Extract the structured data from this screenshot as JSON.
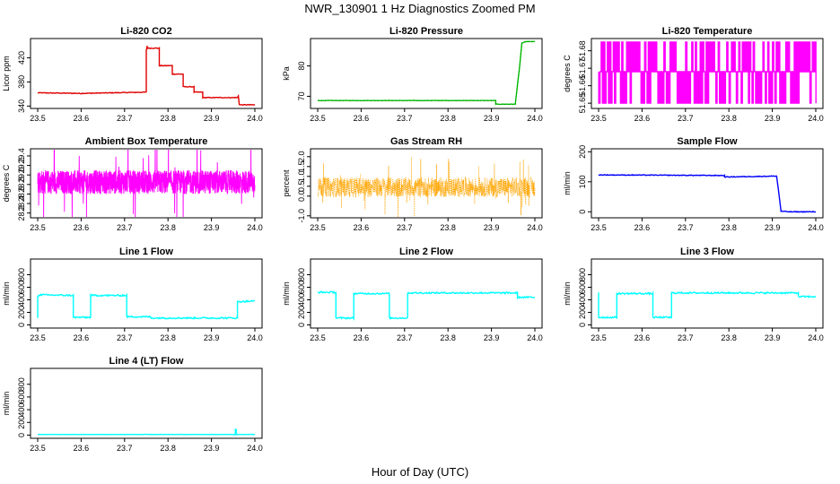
{
  "figure": {
    "title": "NWR_130901  1 Hz Diagnostics Zoomed PM",
    "xlabel": "Hour of Day (UTC)"
  },
  "chart_data": [
    {
      "type": "line",
      "title": "Li-820 CO2",
      "ylabel": "Licor ppm",
      "xlim": [
        23.5,
        24.0
      ],
      "ylim": [
        336,
        452
      ],
      "xticks": [
        "23.5",
        "23.6",
        "23.7",
        "23.8",
        "23.9",
        "24.0"
      ],
      "yticks": [
        {
          "v": 340,
          "label": "340"
        },
        {
          "v": 380,
          "label": "380"
        },
        {
          "v": 420,
          "label": "420"
        }
      ],
      "color": "#e00000",
      "noise": 0.6,
      "dense": false,
      "points": false,
      "x": [
        23.5,
        23.6,
        23.75,
        23.75,
        23.752,
        23.752,
        23.78,
        23.78,
        23.81,
        23.81,
        23.835,
        23.835,
        23.86,
        23.86,
        23.88,
        23.88,
        23.96,
        23.962,
        23.964,
        23.966,
        24.0
      ],
      "y": [
        362,
        361,
        363,
        432,
        440,
        436,
        436,
        407,
        407,
        393,
        393,
        372,
        372,
        363,
        363,
        354,
        354,
        357,
        343,
        342,
        342
      ]
    },
    {
      "type": "line",
      "title": "Li-820 Pressure",
      "ylabel": "kPa",
      "xlim": [
        23.5,
        24.0
      ],
      "ylim": [
        66,
        89
      ],
      "xticks": [
        "23.5",
        "23.6",
        "23.7",
        "23.8",
        "23.9",
        "24.0"
      ],
      "yticks": [
        {
          "v": 70,
          "label": "70"
        },
        {
          "v": 80,
          "label": "80"
        }
      ],
      "color": "#00c000",
      "noise": 0.05,
      "dense": false,
      "points": true,
      "x": [
        23.5,
        23.8,
        23.91,
        23.91,
        23.955,
        23.965,
        23.97,
        23.98,
        24.0
      ],
      "y": [
        68.6,
        68.6,
        68.6,
        67.4,
        67.4,
        80,
        87.5,
        88,
        88
      ]
    },
    {
      "type": "line",
      "title": "Li-820 Temperature",
      "ylabel": "degrees C",
      "xlim": [
        23.5,
        24.0
      ],
      "ylim": [
        51.647,
        51.687
      ],
      "xticks": [
        "23.5",
        "23.6",
        "23.7",
        "23.8",
        "23.9",
        "24.0"
      ],
      "yticks": [
        {
          "v": 51.65,
          "label": "51.65"
        },
        {
          "v": 51.66,
          "label": "51.66"
        },
        {
          "v": 51.67,
          "label": "51.67"
        },
        {
          "v": 51.68,
          "label": "51.68"
        }
      ],
      "color": "#ff00ff",
      "noise": 0,
      "dense": false,
      "points": false,
      "levels": [
        51.685,
        51.668,
        51.65
      ],
      "mid": 51.668,
      "toggles": 180
    },
    {
      "type": "line",
      "title": "Ambient Box Temperature",
      "ylabel": "degrees C",
      "xlim": [
        23.5,
        24.0
      ],
      "ylim": [
        28.1,
        29.55
      ],
      "xticks": [
        "23.5",
        "23.6",
        "23.7",
        "23.8",
        "23.9",
        "24.0"
      ],
      "yticks": [
        {
          "v": 28.2,
          "label": "28.2"
        },
        {
          "v": 28.4,
          "label": "28.4"
        },
        {
          "v": 28.6,
          "label": "28.6"
        },
        {
          "v": 28.8,
          "label": "28.8"
        },
        {
          "v": 29.0,
          "label": "29.0"
        },
        {
          "v": 29.2,
          "label": "29.2"
        },
        {
          "v": 29.4,
          "label": "29.4"
        }
      ],
      "color": "#ff00ff",
      "noise": 0,
      "dense": true,
      "points": false,
      "center": 28.85,
      "spread": 0.25,
      "spikes": 1.35,
      "samples": 1500
    },
    {
      "type": "scatter",
      "title": "Gas Stream RH",
      "ylabel": "percent",
      "xlim": [
        23.5,
        24.0
      ],
      "ylim": [
        -1.1,
        2.4
      ],
      "xticks": [
        "23.5",
        "23.6",
        "23.7",
        "23.8",
        "23.9",
        "24.0"
      ],
      "yticks": [
        {
          "v": -1.0,
          "label": "-1.0"
        },
        {
          "v": 0.0,
          "label": "0.0"
        },
        {
          "v": 0.5,
          "label": "0.5"
        },
        {
          "v": 1.0,
          "label": "1.0"
        },
        {
          "v": 1.5,
          "label": "1.5"
        },
        {
          "v": 2.0,
          "label": "2.0"
        }
      ],
      "color": "#ffa500",
      "noise": 0,
      "dense": true,
      "points": true,
      "center": 0.45,
      "spread": 0.5,
      "spikes": 1.8,
      "samples": 1100
    },
    {
      "type": "line",
      "title": "Sample Flow",
      "ylabel": "ml/min",
      "xlim": [
        23.5,
        24.0
      ],
      "ylim": [
        -20,
        210
      ],
      "xticks": [
        "23.5",
        "23.6",
        "23.7",
        "23.8",
        "23.9",
        "24.0"
      ],
      "yticks": [
        {
          "v": 0,
          "label": "0"
        },
        {
          "v": 100,
          "label": "100"
        },
        {
          "v": 200,
          "label": "200"
        }
      ],
      "color": "#0000ff",
      "noise": 1.2,
      "dense": false,
      "points": false,
      "x": [
        23.5,
        23.79,
        23.79,
        23.91,
        23.91,
        23.92,
        23.94,
        24.0
      ],
      "y": [
        123,
        121,
        116,
        119,
        119,
        2,
        0,
        0
      ]
    },
    {
      "type": "line",
      "title": "Line 1 Flow",
      "ylabel": "ml/min",
      "xlim": [
        23.5,
        24.0
      ],
      "ylim": [
        -50,
        1050
      ],
      "xticks": [
        "23.5",
        "23.6",
        "23.7",
        "23.8",
        "23.9",
        "24.0"
      ],
      "yticks": [
        {
          "v": 0,
          "label": "0"
        },
        {
          "v": 200,
          "label": "200"
        },
        {
          "v": 400,
          "label": "400"
        },
        {
          "v": 600,
          "label": "600"
        },
        {
          "v": 800,
          "label": "800"
        }
      ],
      "color": "#00ffff",
      "noise": 12,
      "dense": false,
      "points": false,
      "x": [
        23.5,
        23.5,
        23.502,
        23.502,
        23.582,
        23.582,
        23.622,
        23.622,
        23.705,
        23.705,
        23.76,
        23.76,
        23.96,
        23.96,
        24.0
      ],
      "y": [
        120,
        450,
        450,
        480,
        470,
        120,
        120,
        470,
        470,
        130,
        130,
        110,
        110,
        370,
        380
      ]
    },
    {
      "type": "line",
      "title": "Line 2 Flow",
      "ylabel": "ml/min",
      "xlim": [
        23.5,
        24.0
      ],
      "ylim": [
        -50,
        1050
      ],
      "xticks": [
        "23.5",
        "23.6",
        "23.7",
        "23.8",
        "23.9",
        "24.0"
      ],
      "yticks": [
        {
          "v": 0,
          "label": "0"
        },
        {
          "v": 200,
          "label": "200"
        },
        {
          "v": 400,
          "label": "400"
        },
        {
          "v": 600,
          "label": "600"
        },
        {
          "v": 800,
          "label": "800"
        }
      ],
      "color": "#00ffff",
      "noise": 12,
      "dense": false,
      "points": false,
      "x": [
        23.5,
        23.542,
        23.542,
        23.583,
        23.583,
        23.665,
        23.665,
        23.707,
        23.707,
        23.96,
        23.96,
        24.0
      ],
      "y": [
        520,
        520,
        110,
        110,
        500,
        500,
        110,
        110,
        510,
        510,
        440,
        440
      ]
    },
    {
      "type": "line",
      "title": "Line 3 Flow",
      "ylabel": "ml/min",
      "xlim": [
        23.5,
        24.0
      ],
      "ylim": [
        -50,
        1050
      ],
      "xticks": [
        "23.5",
        "23.6",
        "23.7",
        "23.8",
        "23.9",
        "24.0"
      ],
      "yticks": [
        {
          "v": 0,
          "label": "0"
        },
        {
          "v": 200,
          "label": "200"
        },
        {
          "v": 400,
          "label": "400"
        },
        {
          "v": 600,
          "label": "600"
        },
        {
          "v": 800,
          "label": "800"
        }
      ],
      "color": "#00ffff",
      "noise": 12,
      "dense": false,
      "points": false,
      "x": [
        23.5,
        23.5,
        23.502,
        23.542,
        23.542,
        23.625,
        23.625,
        23.668,
        23.668,
        23.96,
        23.96,
        24.0
      ],
      "y": [
        520,
        120,
        120,
        120,
        500,
        500,
        120,
        120,
        510,
        510,
        450,
        450
      ]
    },
    {
      "type": "line",
      "title": "Line 4 (LT) Flow",
      "ylabel": "ml/min",
      "xlim": [
        23.5,
        24.0
      ],
      "ylim": [
        -50,
        1050
      ],
      "xticks": [
        "23.5",
        "23.6",
        "23.7",
        "23.8",
        "23.9",
        "24.0"
      ],
      "yticks": [
        {
          "v": 0,
          "label": "0"
        },
        {
          "v": 200,
          "label": "200"
        },
        {
          "v": 400,
          "label": "400"
        },
        {
          "v": 600,
          "label": "600"
        },
        {
          "v": 800,
          "label": "800"
        }
      ],
      "color": "#00ffff",
      "noise": 2,
      "dense": false,
      "points": false,
      "x": [
        23.5,
        23.955,
        23.955,
        23.957,
        23.957,
        24.0
      ],
      "y": [
        10,
        10,
        90,
        90,
        10,
        10
      ]
    }
  ]
}
